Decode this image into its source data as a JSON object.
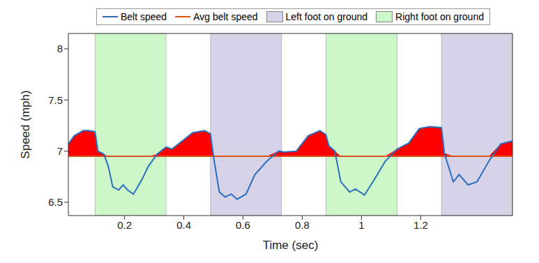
{
  "chart_data": {
    "type": "line",
    "xlabel": "Time (sec)",
    "ylabel": "Speed (mph)",
    "xlim": [
      0.01,
      1.51
    ],
    "xticks": [
      0.2,
      0.4,
      0.6,
      0.8,
      1,
      1.2
    ],
    "ylim": [
      6.37,
      8.15
    ],
    "yticks": [
      6.5,
      7,
      7.5,
      8
    ],
    "x": [
      0.01,
      0.03,
      0.06,
      0.08,
      0.1,
      0.11,
      0.13,
      0.145,
      0.16,
      0.18,
      0.195,
      0.21,
      0.23,
      0.26,
      0.28,
      0.31,
      0.34,
      0.36,
      0.395,
      0.43,
      0.47,
      0.49,
      0.5,
      0.52,
      0.54,
      0.56,
      0.58,
      0.61,
      0.64,
      0.68,
      0.72,
      0.74,
      0.78,
      0.82,
      0.86,
      0.88,
      0.89,
      0.91,
      0.93,
      0.96,
      0.98,
      1.01,
      1.045,
      1.08,
      1.12,
      1.16,
      1.195,
      1.23,
      1.27,
      1.28,
      1.31,
      1.33,
      1.36,
      1.39,
      1.43,
      1.47,
      1.51
    ],
    "series": [
      {
        "name": "Belt speed",
        "color": "#2a6fbf",
        "values": [
          7.07,
          7.15,
          7.2,
          7.2,
          7.19,
          7.0,
          6.97,
          6.85,
          6.65,
          6.62,
          6.67,
          6.62,
          6.58,
          6.73,
          6.85,
          6.97,
          7.04,
          7.02,
          7.1,
          7.18,
          7.2,
          7.17,
          6.95,
          6.6,
          6.55,
          6.58,
          6.53,
          6.58,
          6.77,
          6.9,
          7.0,
          6.99,
          7.0,
          7.15,
          7.2,
          7.16,
          7.05,
          7.0,
          6.7,
          6.6,
          6.63,
          6.57,
          6.73,
          6.9,
          7.02,
          7.08,
          7.22,
          7.24,
          7.23,
          6.98,
          6.7,
          6.77,
          6.67,
          6.7,
          6.9,
          7.07,
          7.1
        ]
      },
      {
        "name": "Avg belt speed",
        "color": "#d9541a",
        "values": [
          6.95,
          6.95,
          6.95,
          6.95,
          6.95,
          6.95,
          6.95,
          6.95,
          6.95,
          6.95,
          6.95,
          6.95,
          6.95,
          6.95,
          6.95,
          6.95,
          6.95,
          6.95,
          6.95,
          6.95,
          6.95,
          6.95,
          6.95,
          6.95,
          6.95,
          6.95,
          6.95,
          6.95,
          6.95,
          6.95,
          6.95,
          6.95,
          6.95,
          6.95,
          6.95,
          6.95,
          6.95,
          6.95,
          6.95,
          6.95,
          6.95,
          6.95,
          6.95,
          6.95,
          6.95,
          6.95,
          6.95,
          6.95,
          6.95,
          6.95,
          6.95,
          6.95,
          6.95,
          6.95,
          6.95,
          6.95,
          6.95
        ]
      }
    ],
    "regions": [
      {
        "name": "Left foot on ground",
        "color": "#d6d3e8",
        "spans": [
          [
            0.49,
            0.73
          ],
          [
            1.27,
            1.51
          ]
        ]
      },
      {
        "name": "Right foot on ground",
        "color": "#cdf7c8",
        "spans": [
          [
            0.1,
            0.34
          ],
          [
            0.88,
            1.12
          ]
        ]
      }
    ]
  }
}
